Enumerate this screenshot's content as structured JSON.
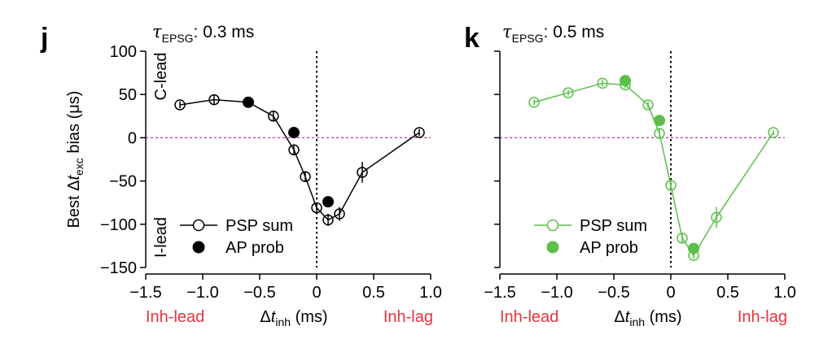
{
  "chart_data": [
    {
      "type": "line",
      "panel_label": "j",
      "title_symbol": "τ",
      "title_subscript": "EPSG",
      "title_value": ": 0.3 ms",
      "ylabel_prefix": "Best Δ",
      "ylabel_var": "t",
      "ylabel_sub": "exc",
      "ylabel_suffix": " bias (μs)",
      "xlabel_prefix": "Δ",
      "xlabel_var": "t",
      "xlabel_sub": "inh",
      "xlabel_suffix": " (ms)",
      "xlim": [
        -1.5,
        1.0
      ],
      "ylim": [
        -150,
        100
      ],
      "xticks": [
        -1.5,
        -1.0,
        -0.5,
        0,
        0.5,
        1.0
      ],
      "xtick_labels": [
        "−1.5",
        "−1.0",
        "−0.5",
        "0",
        "0.5",
        "1.0"
      ],
      "yticks": [
        100,
        50,
        0,
        -50,
        -100,
        -150
      ],
      "ytick_labels": [
        "100",
        "50",
        "0",
        "−50",
        "−100",
        "−150"
      ],
      "show_ytick_labels": true,
      "color": "#000000",
      "reference_line_color": "#c0399a",
      "region_labels": {
        "top": "C-lead",
        "bottom": "I-lead"
      },
      "axis_end_labels": {
        "left": "Inh-lead",
        "right": "Inh-lag",
        "color": "#e8333d"
      },
      "legend": {
        "psp": "PSP sum",
        "ap": "AP prob",
        "placement": "bottom-left"
      },
      "series": [
        {
          "name": "PSP sum",
          "marker": "open",
          "x": [
            -1.2,
            -0.9,
            -0.6,
            -0.38,
            -0.2,
            -0.1,
            0,
            0.1,
            0.2,
            0.4,
            0.9
          ],
          "y": [
            38,
            44,
            41,
            25,
            -14,
            -45,
            -81,
            -95,
            -88,
            -40,
            6
          ],
          "err": [
            4,
            5,
            4,
            5,
            6,
            5,
            6,
            7,
            8,
            12,
            4
          ]
        },
        {
          "name": "AP prob",
          "marker": "filled",
          "x": [
            -0.6,
            -0.2,
            0.1
          ],
          "y": [
            41,
            6,
            -74
          ]
        }
      ]
    },
    {
      "type": "line",
      "panel_label": "k",
      "title_symbol": "τ",
      "title_subscript": "EPSG",
      "title_value": ": 0.5 ms",
      "ylabel_prefix": "",
      "ylabel_var": "",
      "ylabel_sub": "",
      "ylabel_suffix": "",
      "xlabel_prefix": "Δ",
      "xlabel_var": "t",
      "xlabel_sub": "inh",
      "xlabel_suffix": " (ms)",
      "xlim": [
        -1.5,
        1.0
      ],
      "ylim": [
        -150,
        100
      ],
      "xticks": [
        -1.5,
        -1.0,
        -0.5,
        0,
        0.5,
        1.0
      ],
      "xtick_labels": [
        "−1.5",
        "−1.0",
        "−0.5",
        "0",
        "0.5",
        "1.0"
      ],
      "yticks": [
        100,
        50,
        0,
        -50,
        -100,
        -150
      ],
      "ytick_labels": [],
      "show_ytick_labels": false,
      "color": "#5cbf4a",
      "reference_line_color": "#c0399a",
      "region_labels": {
        "top": "",
        "bottom": ""
      },
      "axis_end_labels": {
        "left": "Inh-lead",
        "right": "Inh-lag",
        "color": "#e8333d"
      },
      "legend": {
        "psp": "PSP sum",
        "ap": "AP prob",
        "placement": "bottom-left"
      },
      "series": [
        {
          "name": "PSP sum",
          "marker": "open",
          "x": [
            -1.2,
            -0.9,
            -0.6,
            -0.4,
            -0.2,
            -0.1,
            0,
            0.1,
            0.2,
            0.4,
            0.9
          ],
          "y": [
            41,
            52,
            63,
            61,
            38,
            5,
            -55,
            -116,
            -136,
            -92,
            6
          ],
          "err": [
            3,
            3,
            4,
            4,
            4,
            5,
            5,
            5,
            4,
            12,
            3
          ]
        },
        {
          "name": "AP prob",
          "marker": "filled",
          "x": [
            -0.4,
            -0.1,
            0.2
          ],
          "y": [
            66,
            20,
            -128
          ]
        }
      ]
    }
  ]
}
